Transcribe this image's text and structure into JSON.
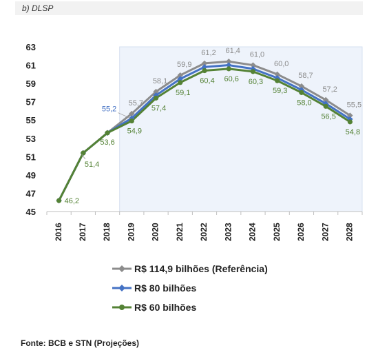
{
  "header": {
    "label": "b) DLSP"
  },
  "footer": {
    "source": "Fonte:  BCB e STN (Projeções)"
  },
  "chart_data": {
    "type": "line",
    "title": "",
    "xlabel": "",
    "ylabel": "",
    "ylim": [
      45,
      63
    ],
    "yticks": [
      "63",
      "61",
      "59",
      "57",
      "55",
      "53",
      "51",
      "49",
      "47",
      "45"
    ],
    "categories": [
      "2016",
      "2017",
      "2018",
      "2019",
      "2020",
      "2021",
      "2022",
      "2023",
      "2024",
      "2025",
      "2026",
      "2027",
      "2028"
    ],
    "projection_start": "2018",
    "grid": false,
    "legend_position": "bottom",
    "series": [
      {
        "name": "R$ 114,9 bilhões (Referência)",
        "color": "#8c8c8c",
        "marker": "diamond",
        "values": [
          46.2,
          51.4,
          53.6,
          55.7,
          58.1,
          59.9,
          61.2,
          61.4,
          61.0,
          60.0,
          58.7,
          57.2,
          55.5
        ]
      },
      {
        "name": "R$ 80 bilhões",
        "color": "#4472c4",
        "marker": "diamond",
        "values": [
          46.2,
          51.4,
          53.6,
          55.2,
          57.7,
          59.5,
          60.8,
          61.0,
          60.6,
          59.6,
          58.3,
          56.8,
          55.1
        ]
      },
      {
        "name": "R$ 60 bilhões",
        "color": "#548235",
        "marker": "circle",
        "values": [
          46.2,
          51.4,
          53.6,
          54.9,
          57.4,
          59.1,
          60.4,
          60.6,
          60.3,
          59.3,
          58.0,
          56.5,
          54.8
        ]
      }
    ],
    "data_labels": [
      {
        "series": 0,
        "index": 3,
        "text": "55,7"
      },
      {
        "series": 0,
        "index": 4,
        "text": "58,1"
      },
      {
        "series": 0,
        "index": 5,
        "text": "59,9"
      },
      {
        "series": 0,
        "index": 6,
        "text": "61,2"
      },
      {
        "series": 0,
        "index": 7,
        "text": "61,4"
      },
      {
        "series": 0,
        "index": 8,
        "text": "61,0"
      },
      {
        "series": 0,
        "index": 9,
        "text": "60,0"
      },
      {
        "series": 0,
        "index": 10,
        "text": "58,7"
      },
      {
        "series": 0,
        "index": 11,
        "text": "57,2"
      },
      {
        "series": 0,
        "index": 12,
        "text": "55,5"
      },
      {
        "series": 1,
        "index": 3,
        "text": "55,2"
      },
      {
        "series": 2,
        "index": 0,
        "text": "46,2"
      },
      {
        "series": 2,
        "index": 1,
        "text": "51,4"
      },
      {
        "series": 2,
        "index": 2,
        "text": "53,6"
      },
      {
        "series": 2,
        "index": 3,
        "text": "54,9"
      },
      {
        "series": 2,
        "index": 4,
        "text": "57,4"
      },
      {
        "series": 2,
        "index": 5,
        "text": "59,1"
      },
      {
        "series": 2,
        "index": 6,
        "text": "60,4"
      },
      {
        "series": 2,
        "index": 7,
        "text": "60,6"
      },
      {
        "series": 2,
        "index": 8,
        "text": "60,3"
      },
      {
        "series": 2,
        "index": 9,
        "text": "59,3"
      },
      {
        "series": 2,
        "index": 10,
        "text": "58,0"
      },
      {
        "series": 2,
        "index": 11,
        "text": "56,5"
      },
      {
        "series": 2,
        "index": 12,
        "text": "54,8"
      }
    ]
  }
}
